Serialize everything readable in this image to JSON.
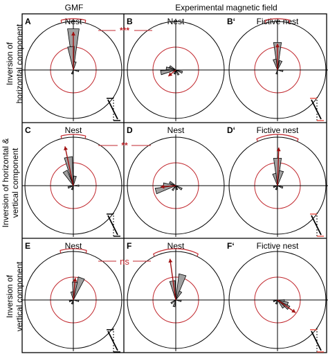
{
  "column_headers": {
    "gmf": "GMF",
    "experimental": "Experimental magnetic field"
  },
  "row_labels": [
    {
      "line1": "Inversion of",
      "line2": "horizontal component",
      "line3": ""
    },
    {
      "line1": "Inversion of horizontal &",
      "line2": "vertical component",
      "line3": ""
    },
    {
      "line1": "Inversion of",
      "line2": "vertical component",
      "line3": ""
    }
  ],
  "panels": [
    {
      "letter": "A",
      "title": "Nest"
    },
    {
      "letter": "B",
      "title": "Nest"
    },
    {
      "letter": "B‘",
      "title": "Fictive nest"
    },
    {
      "letter": "C",
      "title": "Nest"
    },
    {
      "letter": "D",
      "title": "Nest"
    },
    {
      "letter": "D‘",
      "title": "Fictive nest"
    },
    {
      "letter": "E",
      "title": "Nest"
    },
    {
      "letter": "F",
      "title": "Nest"
    },
    {
      "letter": "F‘",
      "title": "Fictive nest"
    }
  ],
  "significance": [
    "***",
    "**",
    "ns"
  ],
  "colors": {
    "inner_circle": "#c1272d",
    "mean_arrow": "#a01010",
    "sector_fill": "#a0a0a0",
    "frame": "#000000",
    "field_symbol_red": "#e8564a"
  }
}
